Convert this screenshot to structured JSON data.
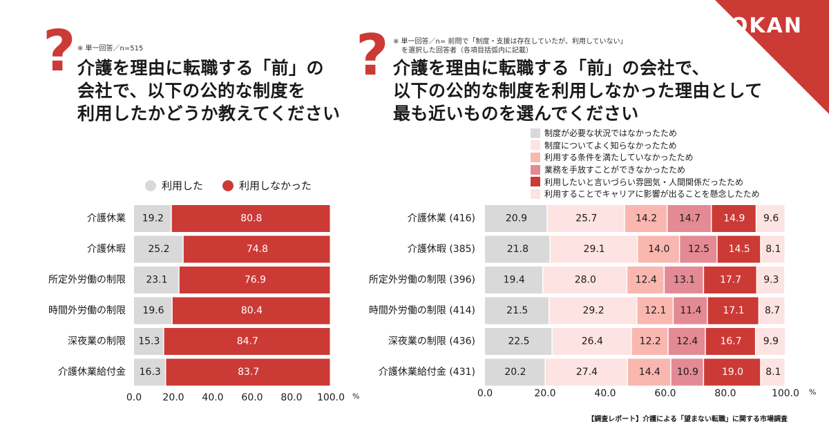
{
  "brand": {
    "logo": "OKAN",
    "accent": "#cc3a36"
  },
  "left": {
    "qmark": "?",
    "note": "※ 単一回答／n=515",
    "title_lines": [
      "介護を理由に転職する「前」の",
      "会社で、以下の公的な制度を",
      "利用したかどうか教えてください"
    ]
  },
  "right": {
    "qmark": "?",
    "note_lines": [
      "※ 単一回答／n= 前問で「制度・支援は存在していたが、利用していない」",
      "を選択した回答者（各項目括弧内に記載）"
    ],
    "title_lines": [
      "介護を理由に転職する「前」の会社で、",
      "以下の公的な制度を利用しなかった理由として",
      "最も近いものを選んでください"
    ]
  },
  "source": "【調査レポート】介護による「望まない転職」に関する市場調査",
  "chart_data": [
    {
      "type": "bar",
      "orientation": "horizontal-stacked",
      "categories": [
        "介護休業",
        "介護休暇",
        "所定外労働の制限",
        "時間外労働の制限",
        "深夜業の制限",
        "介護休業給付金"
      ],
      "series": [
        {
          "name": "利用した",
          "color": "#d9d9d9",
          "values": [
            19.2,
            25.2,
            23.1,
            19.6,
            15.3,
            16.3
          ]
        },
        {
          "name": "利用しなかった",
          "color": "#cc3a36",
          "values": [
            80.8,
            74.8,
            76.9,
            80.4,
            84.7,
            83.7
          ]
        }
      ],
      "xlim": [
        0,
        100
      ],
      "xticks": [
        "0.0",
        "20.0",
        "40.0",
        "60.0",
        "80.0",
        "100.0"
      ],
      "unit": "%",
      "legend_position": "top"
    },
    {
      "type": "bar",
      "orientation": "horizontal-stacked",
      "categories": [
        "介護休業 (416)",
        "介護休暇 (385)",
        "所定外労働の制限 (396)",
        "時間外労働の制限 (414)",
        "深夜業の制限 (436)",
        "介護休業給付金 (431)"
      ],
      "series": [
        {
          "name": "制度が必要な状況ではなかったため",
          "color": "#d9d9d9",
          "values": [
            20.9,
            21.8,
            19.4,
            21.5,
            22.5,
            20.2
          ]
        },
        {
          "name": "制度についてよく知らなかったため",
          "color": "#fde3e1",
          "values": [
            25.7,
            29.1,
            28.0,
            29.2,
            26.4,
            27.4
          ]
        },
        {
          "name": "利用する条件を満たしていなかったため",
          "color": "#f9b7b0",
          "values": [
            14.2,
            14.0,
            12.4,
            12.1,
            12.2,
            14.4
          ]
        },
        {
          "name": "業務を手放すことができなかったため",
          "color": "#e48a95",
          "values": [
            14.7,
            12.5,
            13.1,
            11.4,
            12.4,
            10.9
          ]
        },
        {
          "name": "利用したいと言いづらい雰囲気・人間関係だったため",
          "color": "#cc3a36",
          "values": [
            14.9,
            14.5,
            17.7,
            17.1,
            16.7,
            19.0
          ]
        },
        {
          "name": "利用することでキャリアに影響が出ることを懸念したため",
          "color": "#fde3e1",
          "values": [
            9.6,
            8.1,
            9.3,
            8.7,
            9.9,
            8.1
          ]
        }
      ],
      "xlim": [
        0,
        100
      ],
      "xticks": [
        "0.0",
        "20.0",
        "40.0",
        "60.0",
        "80.0",
        "100.0"
      ],
      "unit": "%",
      "legend_position": "top-right"
    }
  ]
}
